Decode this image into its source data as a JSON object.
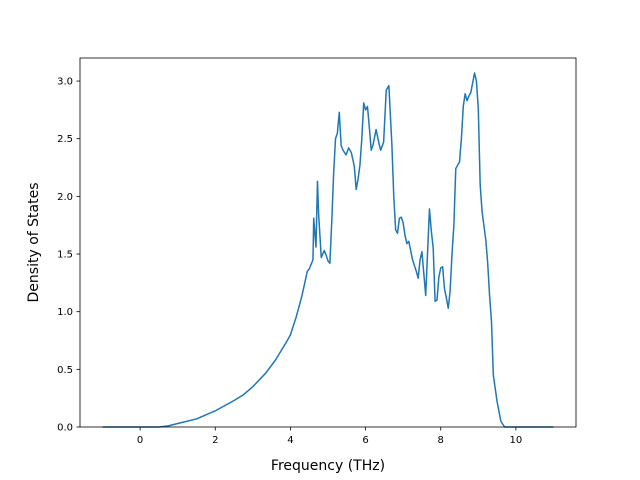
{
  "chart_data": {
    "type": "line",
    "title": "",
    "xlabel": "Frequency (THz)",
    "ylabel": "Density of States",
    "xlim": [
      -1.6,
      11.6
    ],
    "ylim": [
      0.0,
      3.2
    ],
    "xticks": [
      0,
      2,
      4,
      6,
      8,
      10
    ],
    "xtick_labels": [
      "0",
      "2",
      "4",
      "6",
      "8",
      "10"
    ],
    "yticks": [
      0.0,
      0.5,
      1.0,
      1.5,
      2.0,
      2.5,
      3.0
    ],
    "ytick_labels": [
      "0.0",
      "0.5",
      "1.0",
      "1.5",
      "2.0",
      "2.5",
      "3.0"
    ],
    "grid": false,
    "line_color": "#1f77b4",
    "series": [
      {
        "x": [
          -1.0,
          0.0,
          0.5,
          0.75,
          1.0,
          1.5,
          2.0,
          2.5,
          2.75,
          3.0,
          3.35,
          3.6,
          3.9,
          4.0,
          4.15,
          4.3,
          4.45,
          4.5,
          4.6,
          4.62,
          4.68,
          4.72,
          4.75,
          4.82,
          4.9,
          4.95,
          5.0,
          5.05,
          5.1,
          5.15,
          5.2,
          5.25,
          5.3,
          5.35,
          5.4,
          5.48,
          5.55,
          5.62,
          5.7,
          5.75,
          5.8,
          5.85,
          5.9,
          5.95,
          6.0,
          6.05,
          6.1,
          6.15,
          6.2,
          6.28,
          6.35,
          6.4,
          6.48,
          6.55,
          6.62,
          6.7,
          6.75,
          6.8,
          6.85,
          6.9,
          6.95,
          7.0,
          7.05,
          7.1,
          7.15,
          7.2,
          7.25,
          7.3,
          7.35,
          7.4,
          7.45,
          7.5,
          7.6,
          7.7,
          7.75,
          7.8,
          7.85,
          7.9,
          7.95,
          8.0,
          8.05,
          8.1,
          8.15,
          8.2,
          8.25,
          8.3,
          8.35,
          8.4,
          8.5,
          8.55,
          8.6,
          8.65,
          8.7,
          8.75,
          8.8,
          8.9,
          8.95,
          9.0,
          9.05,
          9.1,
          9.2,
          9.25,
          9.3,
          9.35,
          9.4,
          9.5,
          9.6,
          9.7,
          9.8,
          9.9,
          9.95,
          10.0,
          10.05,
          10.2,
          11.0
        ],
        "y": [
          0.0,
          0.0,
          0.0,
          0.01,
          0.03,
          0.07,
          0.14,
          0.23,
          0.28,
          0.35,
          0.47,
          0.58,
          0.74,
          0.8,
          0.95,
          1.13,
          1.35,
          1.37,
          1.45,
          1.81,
          1.56,
          2.13,
          1.85,
          1.47,
          1.53,
          1.49,
          1.44,
          1.42,
          1.78,
          2.2,
          2.5,
          2.55,
          2.73,
          2.44,
          2.4,
          2.36,
          2.42,
          2.38,
          2.26,
          2.06,
          2.15,
          2.27,
          2.5,
          2.81,
          2.75,
          2.78,
          2.6,
          2.4,
          2.45,
          2.58,
          2.47,
          2.4,
          2.47,
          2.92,
          2.96,
          2.45,
          2.0,
          1.71,
          1.68,
          1.81,
          1.82,
          1.77,
          1.66,
          1.59,
          1.61,
          1.53,
          1.45,
          1.4,
          1.35,
          1.29,
          1.45,
          1.52,
          1.14,
          1.89,
          1.7,
          1.55,
          1.09,
          1.1,
          1.3,
          1.38,
          1.39,
          1.2,
          1.12,
          1.03,
          1.18,
          1.5,
          1.75,
          2.24,
          2.3,
          2.5,
          2.78,
          2.89,
          2.83,
          2.87,
          2.9,
          3.07,
          3.0,
          2.76,
          2.1,
          1.87,
          1.62,
          1.42,
          1.14,
          0.92,
          0.45,
          0.22,
          0.05,
          0.0,
          0.0,
          0.0,
          0.0,
          0.0,
          0.0,
          0.0,
          0.0
        ]
      }
    ]
  }
}
